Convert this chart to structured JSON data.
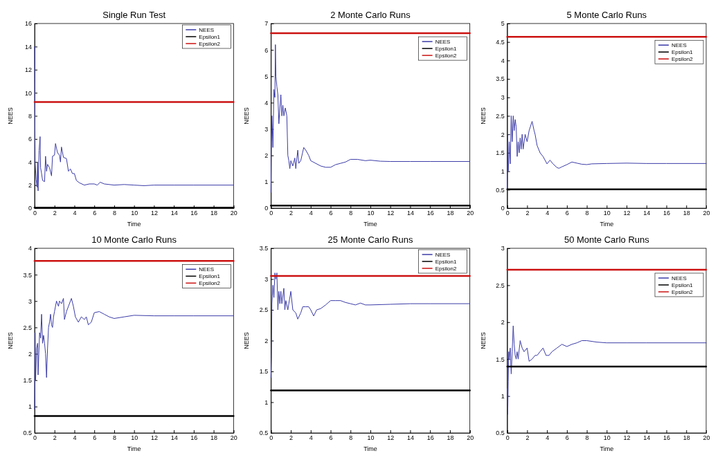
{
  "chart_data": [
    {
      "type": "line",
      "title": "Single Run Test",
      "xlabel": "Time",
      "ylabel": "NEES",
      "xlim": [
        0,
        20
      ],
      "xticks": [
        0,
        2,
        4,
        6,
        8,
        10,
        12,
        14,
        16,
        18,
        20
      ],
      "ylim": [
        0,
        16
      ],
      "yticks": [
        0,
        2,
        4,
        6,
        8,
        10,
        12,
        14,
        16
      ],
      "legend": "top right",
      "series": [
        {
          "name": "NEES",
          "color": "#3b3ba8",
          "x": [
            0,
            0.05,
            0.15,
            0.25,
            0.3,
            0.35,
            0.45,
            0.55,
            0.6,
            0.7,
            0.8,
            1.0,
            1.1,
            1.2,
            1.3,
            1.5,
            1.7,
            1.8,
            2.0,
            2.1,
            2.3,
            2.5,
            2.6,
            2.7,
            2.9,
            3.2,
            3.4,
            3.6,
            3.8,
            4.0,
            4.2,
            4.5,
            5.0,
            5.5,
            6.0,
            6.3,
            6.6,
            7.0,
            8,
            9,
            10,
            11,
            12,
            14,
            16,
            20
          ],
          "values": [
            14,
            4,
            2.5,
            1.8,
            4,
            1.5,
            5,
            6.2,
            3.5,
            3,
            2.4,
            2.3,
            4.5,
            3.2,
            3.8,
            3.5,
            2.8,
            4.5,
            4.6,
            5.6,
            4.8,
            4.6,
            4.0,
            5.3,
            4.4,
            4.3,
            3.2,
            3.4,
            3.0,
            3.0,
            2.4,
            2.2,
            2.0,
            2.1,
            2.1,
            2.0,
            2.25,
            2.1,
            2.0,
            2.05,
            2.0,
            1.95,
            2.0,
            2.0,
            2.0,
            2.0
          ]
        },
        {
          "name": "Epsilon1",
          "color": "#000000",
          "x": [
            0,
            20
          ],
          "values": [
            0.05,
            0.05
          ]
        },
        {
          "name": "Epsilon2",
          "color": "#cc1111",
          "x": [
            0,
            20
          ],
          "values": [
            9.2,
            9.2
          ]
        }
      ]
    },
    {
      "type": "line",
      "title": "2 Monte Carlo Runs",
      "xlabel": "Time",
      "ylabel": "NEES",
      "xlim": [
        0,
        20
      ],
      "xticks": [
        0,
        2,
        4,
        6,
        8,
        10,
        12,
        14,
        16,
        18,
        20
      ],
      "ylim": [
        0,
        7
      ],
      "yticks": [
        0,
        1,
        2,
        3,
        4,
        5,
        6,
        7
      ],
      "legend": "top right",
      "series": [
        {
          "name": "NEES",
          "color": "#3b3ba8",
          "x": [
            0,
            0.05,
            0.1,
            0.2,
            0.3,
            0.4,
            0.45,
            0.5,
            0.6,
            0.7,
            0.8,
            0.9,
            1.0,
            1.1,
            1.2,
            1.3,
            1.45,
            1.6,
            1.7,
            1.8,
            1.9,
            2.0,
            2.2,
            2.4,
            2.5,
            2.7,
            2.8,
            3.0,
            3.3,
            3.5,
            3.8,
            4.0,
            4.5,
            5.0,
            5.5,
            6.0,
            6.5,
            7.0,
            7.5,
            8.0,
            8.7,
            9.5,
            10,
            11,
            12,
            14,
            16,
            20
          ],
          "values": [
            0.6,
            2.5,
            3.5,
            2.3,
            4.5,
            4.2,
            6.2,
            5.0,
            4.6,
            4.3,
            3.2,
            3.8,
            4.3,
            3.5,
            3.9,
            3.5,
            3.8,
            3.5,
            2.0,
            1.8,
            1.5,
            1.8,
            1.6,
            1.9,
            1.5,
            2.2,
            1.7,
            1.8,
            2.3,
            2.2,
            2.0,
            1.8,
            1.7,
            1.6,
            1.55,
            1.55,
            1.65,
            1.7,
            1.75,
            1.85,
            1.85,
            1.8,
            1.82,
            1.78,
            1.77,
            1.77,
            1.77,
            1.77
          ]
        },
        {
          "name": "Epsilon1",
          "color": "#000000",
          "x": [
            0,
            20
          ],
          "values": [
            0.1,
            0.1
          ]
        },
        {
          "name": "Epsilon2",
          "color": "#cc1111",
          "x": [
            0,
            20
          ],
          "values": [
            6.63,
            6.63
          ]
        }
      ]
    },
    {
      "type": "line",
      "title": "5 Monte Carlo Runs",
      "xlabel": "Time",
      "ylabel": "NEES",
      "xlim": [
        0,
        20
      ],
      "xticks": [
        0,
        2,
        4,
        6,
        8,
        10,
        12,
        14,
        16,
        18,
        20
      ],
      "ylim": [
        0,
        5
      ],
      "yticks": [
        0,
        0.5,
        1,
        1.5,
        2,
        2.5,
        3,
        3.5,
        4,
        4.5,
        5
      ],
      "legend": "top right",
      "series": [
        {
          "name": "NEES",
          "color": "#3b3ba8",
          "x": [
            0,
            0.05,
            0.1,
            0.2,
            0.3,
            0.4,
            0.5,
            0.6,
            0.7,
            0.8,
            0.9,
            1.0,
            1.1,
            1.2,
            1.3,
            1.4,
            1.5,
            1.6,
            1.8,
            2.0,
            2.2,
            2.5,
            2.7,
            2.8,
            3.0,
            3.3,
            3.6,
            4.0,
            4.3,
            4.6,
            5.0,
            5.2,
            5.5,
            6.0,
            6.5,
            7.0,
            7.5,
            8,
            8.5,
            10,
            12,
            14,
            16,
            20
          ],
          "values": [
            0.5,
            2.0,
            1.0,
            1.8,
            1.2,
            2.5,
            1.8,
            2.5,
            2.1,
            2.4,
            2.2,
            1.4,
            1.8,
            1.5,
            1.9,
            1.6,
            2.0,
            1.6,
            2.0,
            1.8,
            2.1,
            2.35,
            2.1,
            2.0,
            1.7,
            1.5,
            1.4,
            1.2,
            1.3,
            1.2,
            1.1,
            1.08,
            1.12,
            1.18,
            1.25,
            1.22,
            1.19,
            1.18,
            1.2,
            1.21,
            1.22,
            1.21,
            1.21,
            1.21
          ]
        },
        {
          "name": "Epsilon1",
          "color": "#000000",
          "x": [
            0,
            20
          ],
          "values": [
            0.51,
            0.51
          ]
        },
        {
          "name": "Epsilon2",
          "color": "#cc1111",
          "x": [
            0,
            20
          ],
          "values": [
            4.64,
            4.64
          ]
        }
      ]
    },
    {
      "type": "line",
      "title": "10 Monte Carlo Runs",
      "xlabel": "Time",
      "ylabel": "NEES",
      "xlim": [
        0,
        20
      ],
      "xticks": [
        0,
        2,
        4,
        6,
        8,
        10,
        12,
        14,
        16,
        18,
        20
      ],
      "ylim": [
        0.5,
        4
      ],
      "yticks": [
        0.5,
        1,
        1.5,
        2,
        2.5,
        3,
        3.5,
        4
      ],
      "legend": "top right",
      "series": [
        {
          "name": "NEES",
          "color": "#3b3ba8",
          "x": [
            0,
            0.05,
            0.1,
            0.2,
            0.3,
            0.35,
            0.5,
            0.6,
            0.7,
            0.8,
            0.9,
            1.0,
            1.1,
            1.2,
            1.3,
            1.4,
            1.5,
            1.6,
            1.7,
            1.8,
            1.9,
            2.0,
            2.2,
            2.4,
            2.5,
            2.7,
            2.9,
            3.0,
            3.2,
            3.4,
            3.7,
            3.9,
            4.1,
            4.4,
            4.7,
            5.0,
            5.2,
            5.4,
            5.7,
            6.0,
            6.5,
            7.0,
            7.5,
            8,
            9,
            10,
            12,
            14,
            16,
            20
          ],
          "values": [
            0.95,
            2.4,
            1.5,
            2.1,
            2.2,
            1.6,
            2.4,
            2.3,
            2.75,
            2.2,
            2.35,
            2.2,
            2.0,
            1.55,
            2.1,
            2.5,
            2.6,
            2.75,
            2.55,
            2.5,
            2.7,
            2.8,
            3.0,
            2.9,
            3.0,
            2.95,
            3.05,
            2.65,
            2.8,
            2.9,
            3.05,
            2.9,
            2.7,
            2.6,
            2.7,
            2.65,
            2.7,
            2.55,
            2.6,
            2.78,
            2.8,
            2.75,
            2.7,
            2.67,
            2.7,
            2.73,
            2.72,
            2.72,
            2.72,
            2.72
          ]
        },
        {
          "name": "Epsilon1",
          "color": "#000000",
          "x": [
            0,
            20
          ],
          "values": [
            0.82,
            0.82
          ]
        },
        {
          "name": "Epsilon2",
          "color": "#cc1111",
          "x": [
            0,
            20
          ],
          "values": [
            3.76,
            3.76
          ]
        }
      ]
    },
    {
      "type": "line",
      "title": "25 Monte Carlo Runs",
      "xlabel": "Time",
      "ylabel": "NEES",
      "xlim": [
        0,
        20
      ],
      "xticks": [
        0,
        2,
        4,
        6,
        8,
        10,
        12,
        14,
        16,
        18,
        20
      ],
      "ylim": [
        0.5,
        3.5
      ],
      "yticks": [
        0.5,
        1,
        1.5,
        2,
        2.5,
        3,
        3.5
      ],
      "legend": "top right",
      "series": [
        {
          "name": "NEES",
          "color": "#3b3ba8",
          "x": [
            0,
            0.05,
            0.1,
            0.2,
            0.3,
            0.4,
            0.5,
            0.6,
            0.7,
            0.8,
            0.9,
            1.0,
            1.1,
            1.3,
            1.4,
            1.5,
            1.7,
            1.8,
            2.0,
            2.2,
            2.5,
            2.7,
            3.0,
            3.2,
            3.5,
            3.8,
            4.0,
            4.3,
            4.6,
            5.0,
            5.5,
            6.0,
            6.5,
            7,
            7.5,
            8,
            8.5,
            9,
            9.5,
            10,
            12,
            14,
            16,
            20
          ],
          "values": [
            1.4,
            1.7,
            2.6,
            2.9,
            2.7,
            3.1,
            3.0,
            3.1,
            2.5,
            2.8,
            2.6,
            2.8,
            2.6,
            2.85,
            2.5,
            2.65,
            2.5,
            2.6,
            2.8,
            2.5,
            2.45,
            2.35,
            2.45,
            2.55,
            2.55,
            2.55,
            2.5,
            2.4,
            2.5,
            2.52,
            2.58,
            2.65,
            2.65,
            2.65,
            2.62,
            2.6,
            2.58,
            2.61,
            2.58,
            2.58,
            2.59,
            2.6,
            2.6,
            2.6
          ]
        },
        {
          "name": "Epsilon1",
          "color": "#000000",
          "x": [
            0,
            20
          ],
          "values": [
            1.19,
            1.19
          ]
        },
        {
          "name": "Epsilon2",
          "color": "#cc1111",
          "x": [
            0,
            20
          ],
          "values": [
            3.05,
            3.05
          ]
        }
      ]
    },
    {
      "type": "line",
      "title": "50 Monte Carlo Runs",
      "xlabel": "Time",
      "ylabel": "NEES",
      "xlim": [
        0,
        20
      ],
      "xticks": [
        0,
        2,
        4,
        6,
        8,
        10,
        12,
        14,
        16,
        18,
        20
      ],
      "ylim": [
        0.5,
        3
      ],
      "yticks": [
        0.5,
        1,
        1.5,
        2,
        2.5,
        3
      ],
      "legend": "top right",
      "series": [
        {
          "name": "NEES",
          "color": "#3b3ba8",
          "x": [
            0,
            0.05,
            0.1,
            0.15,
            0.2,
            0.3,
            0.4,
            0.5,
            0.6,
            0.7,
            0.8,
            0.9,
            1.0,
            1.1,
            1.3,
            1.5,
            1.7,
            2.0,
            2.2,
            2.5,
            2.8,
            3.0,
            3.3,
            3.6,
            3.9,
            4.2,
            4.5,
            5.0,
            5.5,
            6.0,
            6.5,
            7.0,
            7.5,
            8.0,
            9,
            10,
            12,
            14,
            20
          ],
          "values": [
            1.1,
            0.75,
            1.2,
            1.6,
            1.5,
            1.65,
            1.3,
            1.6,
            1.95,
            1.7,
            1.55,
            1.5,
            1.6,
            1.5,
            1.75,
            1.65,
            1.6,
            1.65,
            1.47,
            1.5,
            1.55,
            1.55,
            1.6,
            1.65,
            1.55,
            1.55,
            1.6,
            1.65,
            1.7,
            1.67,
            1.7,
            1.72,
            1.75,
            1.75,
            1.73,
            1.72,
            1.72,
            1.72,
            1.72
          ]
        },
        {
          "name": "Epsilon1",
          "color": "#000000",
          "x": [
            0,
            20
          ],
          "values": [
            1.4,
            1.4
          ]
        },
        {
          "name": "Epsilon2",
          "color": "#cc1111",
          "x": [
            0,
            20
          ],
          "values": [
            2.71,
            2.71
          ]
        }
      ]
    }
  ]
}
